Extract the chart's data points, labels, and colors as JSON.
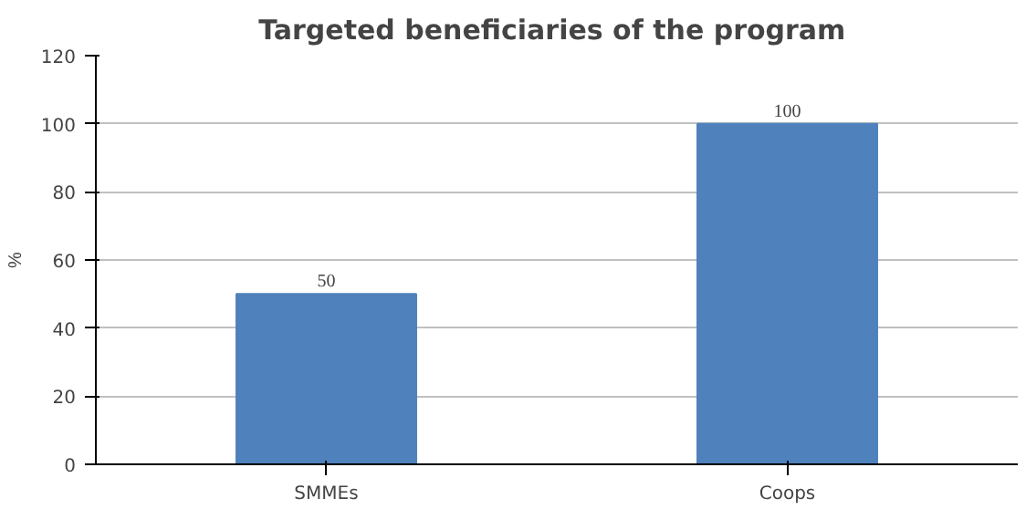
{
  "chart_data": {
    "type": "bar",
    "title": "Targeted beneficiaries of  the program",
    "ylabel": "%",
    "categories": [
      "SMMEs",
      "Coops"
    ],
    "values": [
      50,
      100
    ],
    "color": "#4f81bd",
    "ylim": [
      0,
      120
    ],
    "yticks": [
      0,
      20,
      40,
      60,
      80,
      100,
      120
    ],
    "grid": "y",
    "data_labels": true
  }
}
